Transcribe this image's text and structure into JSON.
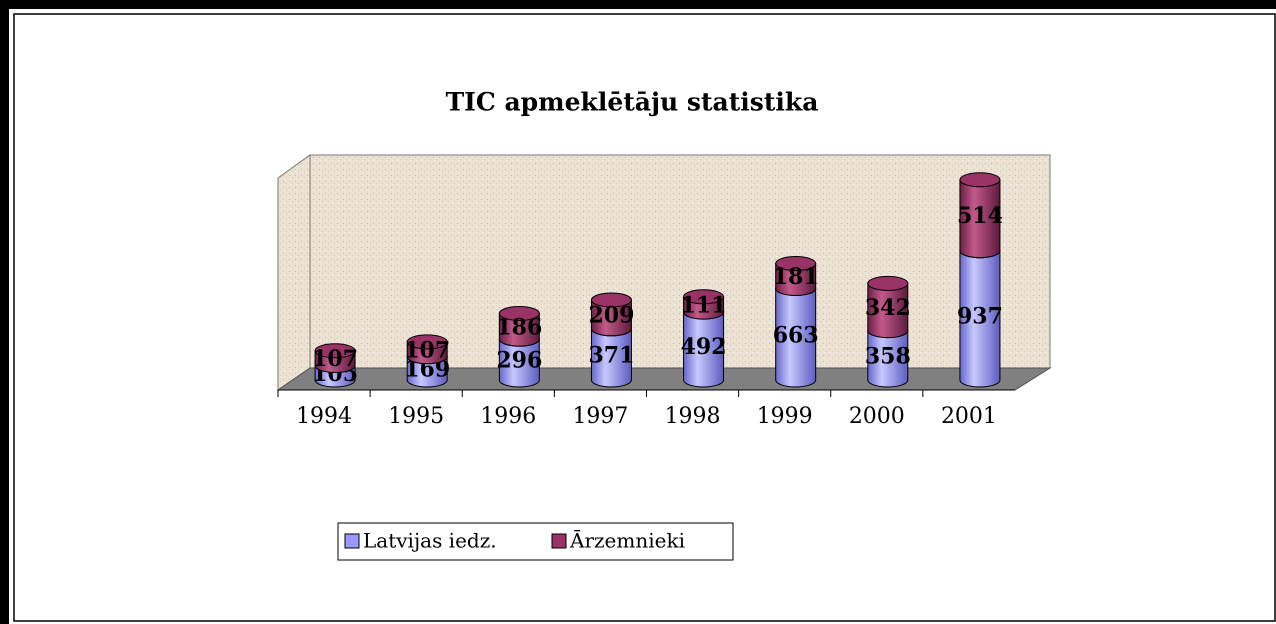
{
  "chart_data": {
    "type": "bar3d-cylinder-stacked",
    "title": "TIC apmeklētāju statistika",
    "categories": [
      "1994",
      "1995",
      "1996",
      "1997",
      "1998",
      "1999",
      "2000",
      "2001"
    ],
    "series": [
      {
        "name": "Latvijas iedz.",
        "color": "#9999ff",
        "values": [
          105,
          169,
          296,
          371,
          492,
          663,
          358,
          937
        ]
      },
      {
        "name": "Ārzemnieki",
        "color": "#993366",
        "values": [
          107,
          107,
          186,
          209,
          111,
          181,
          342,
          514
        ]
      }
    ]
  }
}
